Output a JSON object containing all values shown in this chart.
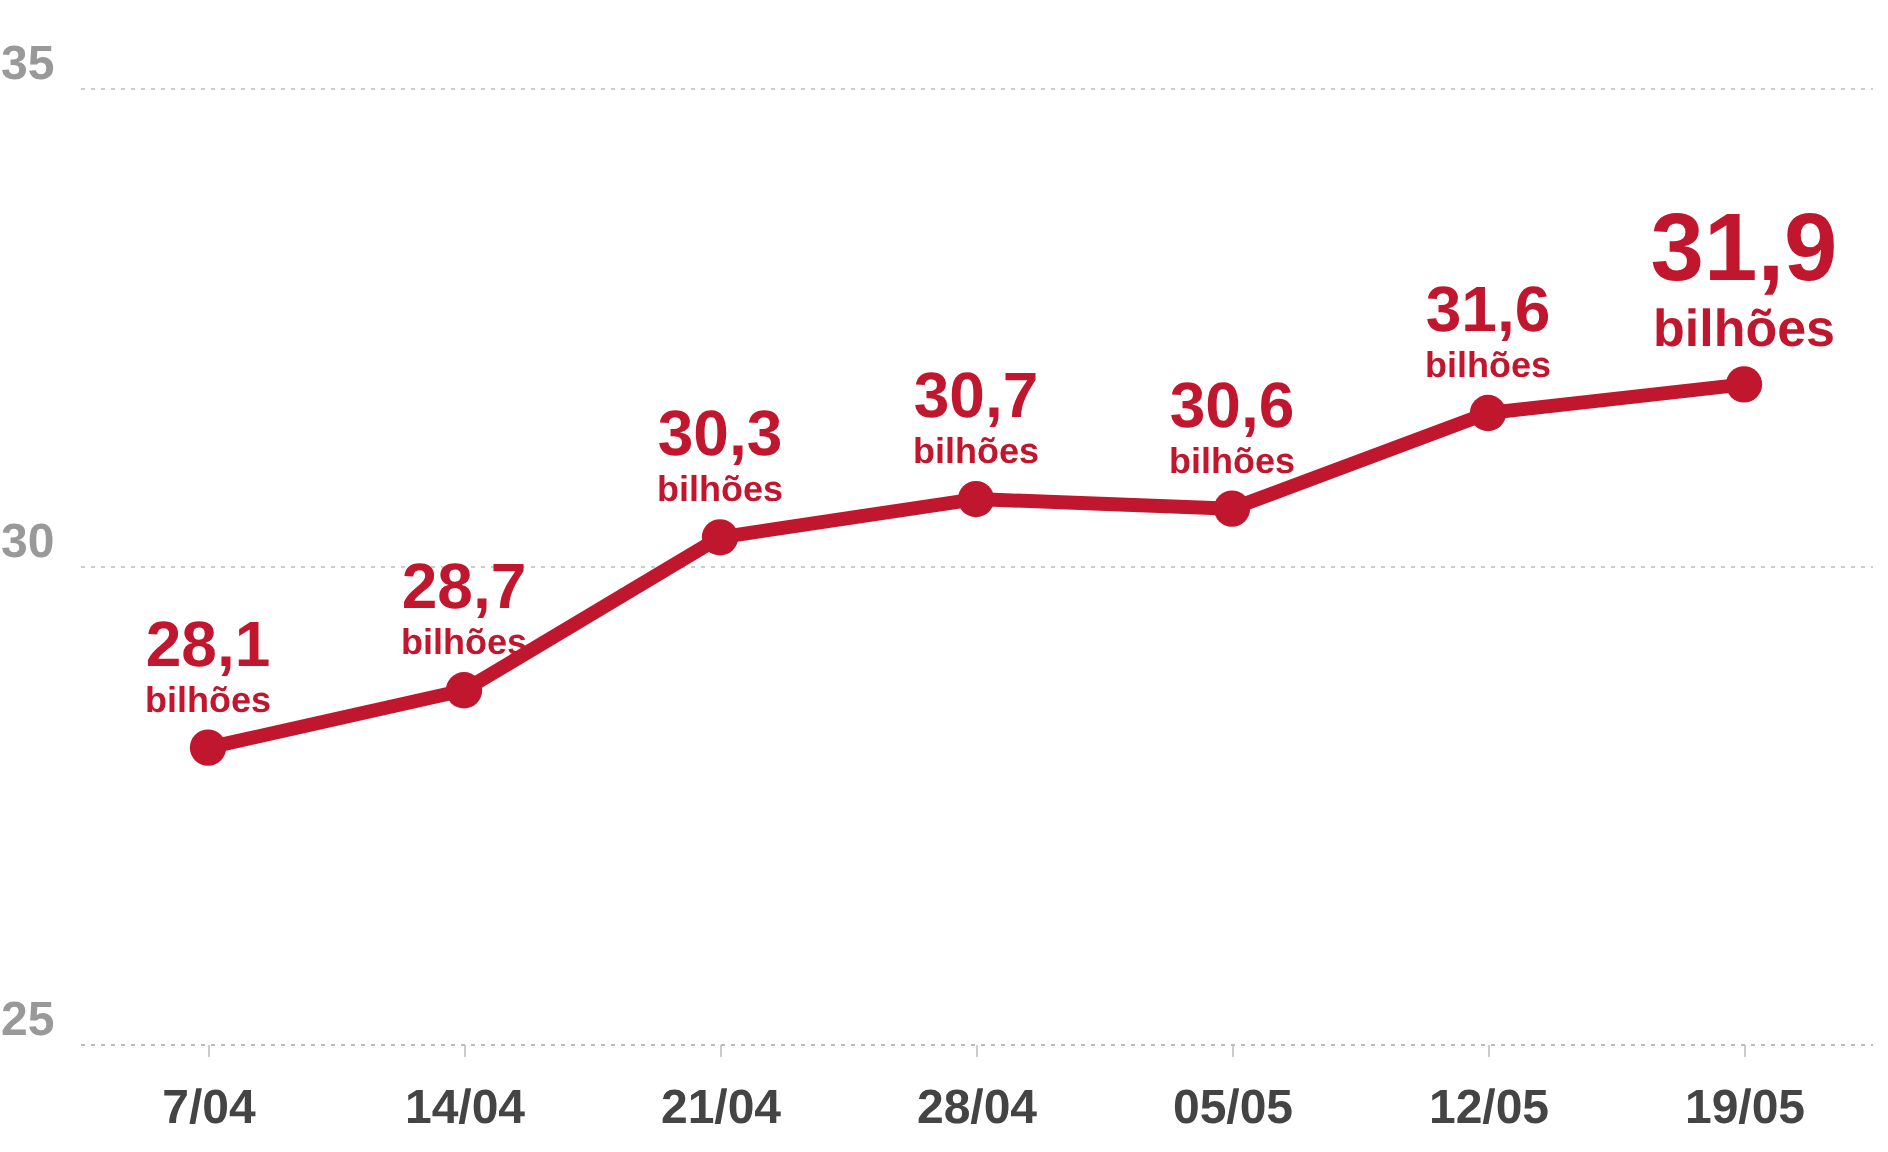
{
  "chart_data": {
    "type": "line",
    "categories": [
      "7/04",
      "14/04",
      "21/04",
      "28/04",
      "05/05",
      "12/05",
      "19/05"
    ],
    "series": [
      {
        "color": "#c0172f",
        "values": [
          28.1,
          28.7,
          30.3,
          30.7,
          30.6,
          31.6,
          31.9
        ],
        "value_labels": [
          "28,1\nbilhões",
          "28,7\nbilhões",
          "30,3\nbilhões",
          "30,7\nbilhões",
          "30,6\nbilhões",
          "31,6\nbilhões",
          "31,9\nbilhões"
        ]
      }
    ],
    "ylim": [
      25,
      35
    ],
    "yticks": [
      25,
      30,
      35
    ],
    "grid": "y",
    "marker": "circle",
    "line_style": "solid"
  }
}
